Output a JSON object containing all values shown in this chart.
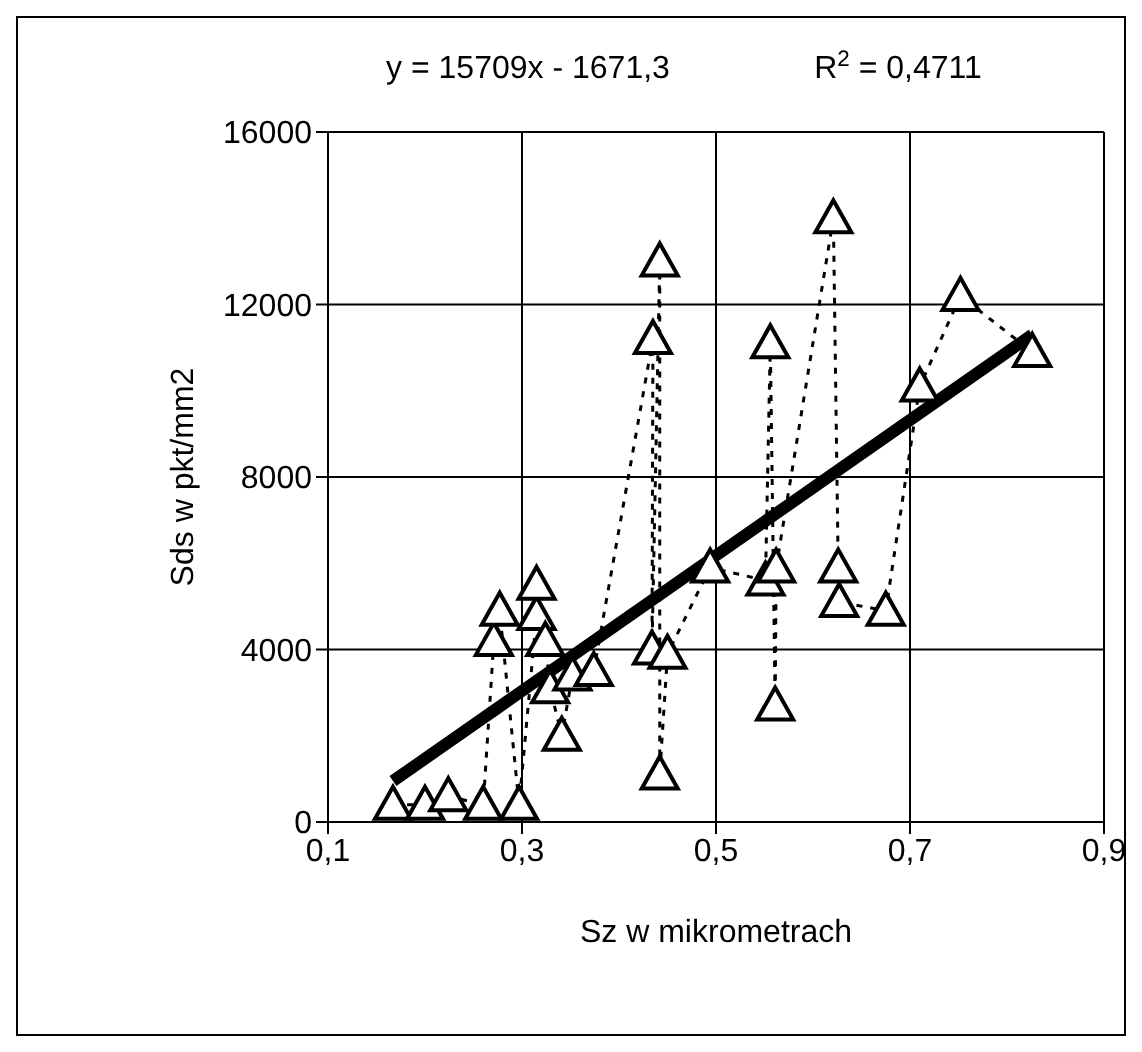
{
  "chart_data": {
    "type": "scatter",
    "xlabel": "Sz w mikrometrach",
    "ylabel": "Sds w pkt/mm2",
    "annotations": [
      "y = 15709x - 1671,3",
      "R$^{2}$ = 0,4711"
    ],
    "xlim": [
      0.1,
      0.9
    ],
    "ylim": [
      0,
      16000
    ],
    "xticks": [
      {
        "value": 0.1,
        "label": "0,1"
      },
      {
        "value": 0.3,
        "label": "0,3"
      },
      {
        "value": 0.5,
        "label": "0,5"
      },
      {
        "value": 0.7,
        "label": "0,7"
      },
      {
        "value": 0.9,
        "label": "0,9"
      }
    ],
    "yticks": [
      0,
      4000,
      8000,
      12000,
      16000
    ],
    "grid": true,
    "series": [
      {
        "type": "line",
        "color": "#000000",
        "marker": "triangle",
        "line_style": "dotted",
        "x": [
          0.167,
          0.2,
          0.224,
          0.26,
          0.271,
          0.277,
          0.297,
          0.315,
          0.315,
          0.324,
          0.329,
          0.341,
          0.352,
          0.374,
          0.435,
          0.434,
          0.442,
          0.442,
          0.45,
          0.494,
          0.551,
          0.556,
          0.561,
          0.562,
          0.621,
          0.626,
          0.627,
          0.675,
          0.71,
          0.752,
          0.826
        ],
        "values": [
          400,
          400,
          600,
          400,
          4200,
          4900,
          400,
          4800,
          5500,
          4200,
          3100,
          2000,
          3400,
          3500,
          11200,
          4000,
          13000,
          1100,
          3900,
          5900,
          5600,
          11100,
          2700,
          5900,
          14000,
          5900,
          5100,
          4900,
          10100,
          12200,
          10900
        ]
      },
      {
        "type": "line",
        "color": "#000000",
        "marker": "none",
        "line_style": "solid",
        "x": [
          0.167,
          0.826
        ],
        "values": [
          950,
          11300
        ]
      }
    ]
  }
}
